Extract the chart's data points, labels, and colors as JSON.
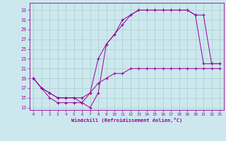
{
  "xlabel": "Windchill (Refroidissement éolien,°C)",
  "bg_color": "#cce8ee",
  "grid_color": "#aacccc",
  "line_color": "#990099",
  "xlim": [
    -0.5,
    23.5
  ],
  "ylim": [
    12.5,
    34.5
  ],
  "yticks": [
    13,
    15,
    17,
    19,
    21,
    23,
    25,
    27,
    29,
    31,
    33
  ],
  "xticks": [
    0,
    1,
    2,
    3,
    4,
    5,
    6,
    7,
    8,
    9,
    10,
    11,
    12,
    13,
    14,
    15,
    16,
    17,
    18,
    19,
    20,
    21,
    22,
    23
  ],
  "line1_x": [
    0,
    1,
    2,
    3,
    4,
    5,
    6,
    7,
    8,
    9,
    10,
    11,
    12,
    13,
    14,
    15,
    16,
    17,
    18,
    19,
    20,
    21,
    22,
    23
  ],
  "line1_y": [
    19,
    17,
    15,
    14,
    14,
    14,
    14,
    13,
    16,
    26,
    28,
    30,
    32,
    33,
    33,
    33,
    33,
    33,
    33,
    33,
    32,
    22,
    22,
    22
  ],
  "line2_x": [
    0,
    1,
    2,
    3,
    4,
    5,
    6,
    7,
    8,
    9,
    10,
    11,
    12,
    13,
    14,
    15,
    16,
    17,
    18,
    19,
    20,
    21,
    22,
    23
  ],
  "line2_y": [
    19,
    17,
    16,
    15,
    15,
    15,
    14,
    16,
    23,
    26,
    28,
    31,
    32,
    33,
    33,
    33,
    33,
    33,
    33,
    33,
    32,
    32,
    22,
    22
  ],
  "line3_x": [
    0,
    1,
    2,
    3,
    4,
    5,
    6,
    7,
    8,
    9,
    10,
    11,
    12,
    13,
    14,
    15,
    16,
    17,
    18,
    19,
    20,
    21,
    22,
    23
  ],
  "line3_y": [
    19,
    17,
    16,
    15,
    15,
    15,
    15,
    16,
    18,
    19,
    20,
    20,
    21,
    21,
    21,
    21,
    21,
    21,
    21,
    21,
    21,
    21,
    21,
    21
  ]
}
